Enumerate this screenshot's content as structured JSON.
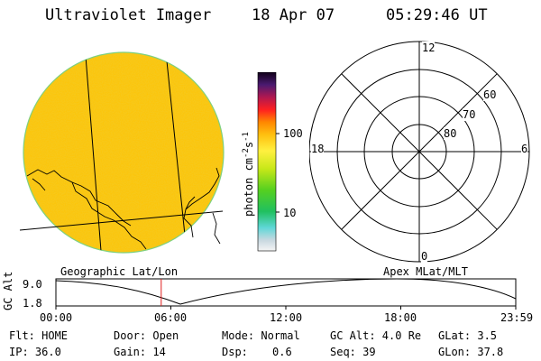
{
  "header": {
    "instrument": "Ultraviolet Imager",
    "date": "18 Apr 07",
    "time": "05:29:46 UT"
  },
  "colorbar": {
    "unit_label": "photon cm",
    "unit_exp1": "-2",
    "unit_s": "s",
    "unit_exp2": "-1",
    "ticks": [
      "100",
      "10"
    ]
  },
  "polar": {
    "mlt_labels": [
      "12",
      "18",
      "6",
      "0"
    ],
    "lat_labels": [
      "60",
      "70",
      "80"
    ]
  },
  "panels": {
    "geo_label": "Geographic Lat/Lon",
    "apex_label": "Apex MLat/MLT"
  },
  "altplot": {
    "ylabel": "GC Alt",
    "yticks": [
      "9.0",
      "1.8"
    ],
    "xticks": [
      "00:00",
      "06:00",
      "12:00",
      "18:00",
      "23:59"
    ],
    "current_time_hours": 5.496,
    "colors": {
      "marker": "#e02020"
    }
  },
  "status": {
    "flt": "Flt: HOME",
    "door": "Door: Open",
    "mode": "Mode: Normal",
    "gc_alt": "GC Alt: 4.0 Re",
    "glat": "GLat:  3.5",
    "ip": "IP: 36.0",
    "gain": "Gain: 14",
    "dsp_label": "Dsp:",
    "dsp_value": "0.6",
    "seq": "Seq: 39",
    "glon": "GLon: 37.8"
  }
}
